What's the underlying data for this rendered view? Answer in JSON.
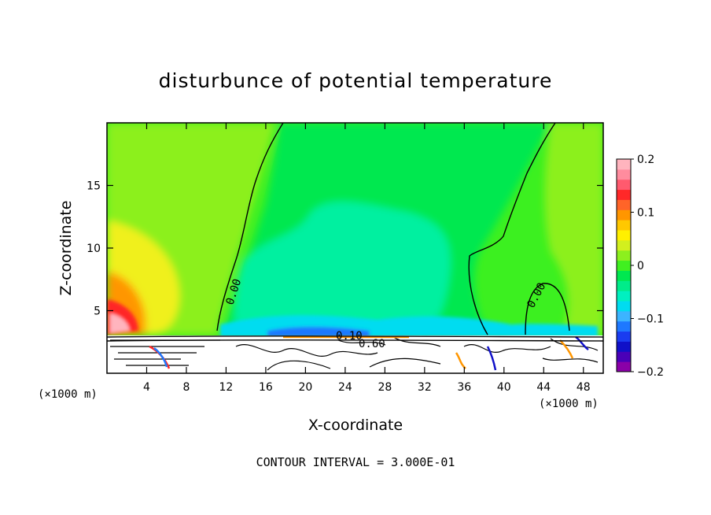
{
  "chart_data": {
    "type": "contour",
    "title": "disturbunce of potential temperature",
    "xlabel": "X-coordinate",
    "ylabel": "Z-coordinate",
    "x_unit": "(×1000 m)",
    "x_unit_right": "(×1000 m)",
    "xlim": [
      0,
      50
    ],
    "ylim": [
      0,
      20
    ],
    "x_ticks": [
      4,
      8,
      12,
      16,
      20,
      24,
      28,
      32,
      36,
      40,
      44,
      48
    ],
    "y_ticks": [
      5,
      10,
      15
    ],
    "colorbar": {
      "range": [
        -0.2,
        0.2
      ],
      "tick_labels": [
        "0.2",
        "0.1",
        "0",
        "−0.1",
        "−0.2"
      ],
      "tick_values": [
        0.2,
        0.1,
        0,
        -0.1,
        -0.2
      ],
      "colors": [
        "#8a00a8",
        "#4a00b8",
        "#1010c8",
        "#1a3cf0",
        "#1e78ff",
        "#3cb4ff",
        "#00dcf0",
        "#00f0c0",
        "#00ec8a",
        "#00e850",
        "#40f020",
        "#8cf01e",
        "#d2f01e",
        "#fff000",
        "#ffc800",
        "#ff9600",
        "#ff6428",
        "#ff2828",
        "#ff5a6e",
        "#ff8c9e",
        "#ffb4be"
      ]
    },
    "contour_labels": [
      "0.00",
      "0.00",
      "0.60",
      "0.10"
    ],
    "footer": "CONTOUR INTERVAL = 3.000E-01"
  }
}
